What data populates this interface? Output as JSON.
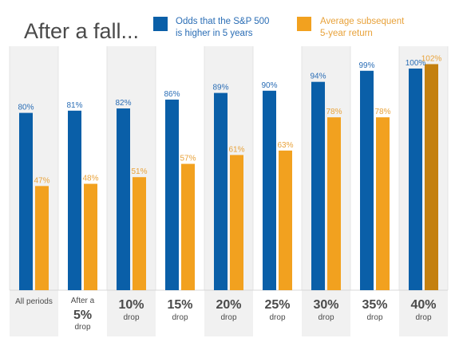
{
  "title": "After a fall...",
  "legend": {
    "odds": {
      "line1": "Odds that the S&P 500",
      "line2": "is higher in 5 years"
    },
    "return": {
      "line1": "Average subsequent",
      "line2": "5-year return"
    }
  },
  "colors": {
    "blue": "#0a5fa8",
    "orange": "#f2a11f",
    "highlight_orange": "#c4800f",
    "blue_text": "#2a6db5",
    "orange_text": "#e8a23a",
    "column_bg": "#f1f1f1",
    "gridline": "#e4e4e4"
  },
  "chart_data": {
    "type": "bar",
    "title": "After a fall...",
    "categories": [
      "All periods",
      "After a 5% drop",
      "10% drop",
      "15% drop",
      "20% drop",
      "25% drop",
      "30% drop",
      "35% drop",
      "40% drop"
    ],
    "category_labels": [
      {
        "small_top": "All periods",
        "big": "",
        "small_bottom": ""
      },
      {
        "small_top": "After a",
        "big": "5%",
        "small_bottom": "drop"
      },
      {
        "small_top": "",
        "big": "10%",
        "small_bottom": "drop"
      },
      {
        "small_top": "",
        "big": "15%",
        "small_bottom": "drop"
      },
      {
        "small_top": "",
        "big": "20%",
        "small_bottom": "drop"
      },
      {
        "small_top": "",
        "big": "25%",
        "small_bottom": "drop"
      },
      {
        "small_top": "",
        "big": "30%",
        "small_bottom": "drop"
      },
      {
        "small_top": "",
        "big": "35%",
        "small_bottom": "drop"
      },
      {
        "small_top": "",
        "big": "40%",
        "small_bottom": "drop"
      }
    ],
    "series": [
      {
        "name": "Odds that the S&P 500 is higher in 5 years",
        "values": [
          80,
          81,
          82,
          86,
          89,
          90,
          94,
          99,
          100
        ],
        "labels": [
          "80%",
          "81%",
          "82%",
          "86%",
          "89%",
          "90%",
          "94%",
          "99%",
          "100%"
        ]
      },
      {
        "name": "Average subsequent 5-year return",
        "values": [
          47,
          48,
          51,
          57,
          61,
          63,
          78,
          78,
          102
        ],
        "labels": [
          "47%",
          "48%",
          "51%",
          "57%",
          "61%",
          "63%",
          "78%",
          "78%",
          "102%"
        ]
      }
    ],
    "highlight_index": 8,
    "ylim": [
      0,
      108
    ],
    "grid": true,
    "legend_position": "top"
  }
}
